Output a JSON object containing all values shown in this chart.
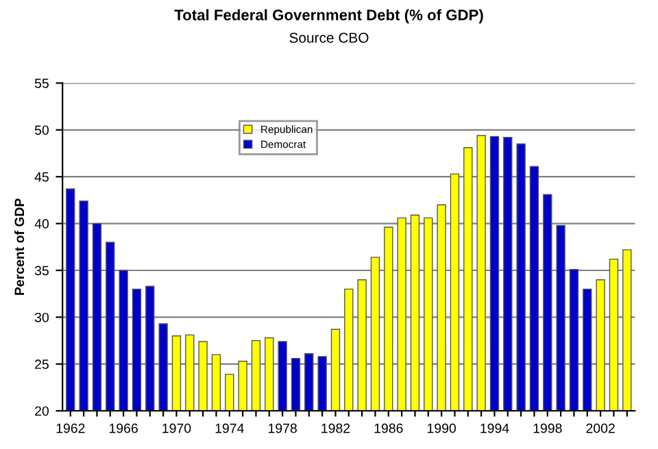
{
  "chart_data": {
    "type": "bar",
    "title": "Total Federal Government Debt (% of GDP)",
    "subtitle": "Source CBO",
    "ylabel": "Percent of GDP",
    "categories": [
      "1962",
      null,
      null,
      null,
      "1966",
      null,
      null,
      null,
      "1970",
      null,
      null,
      null,
      "1974",
      null,
      null,
      null,
      "1978",
      null,
      null,
      null,
      "1982",
      null,
      null,
      null,
      "1986",
      null,
      null,
      null,
      "1990",
      null,
      null,
      null,
      "1994",
      null,
      null,
      null,
      "1998",
      null,
      null,
      null,
      "2002",
      null,
      null
    ],
    "series": [
      {
        "name": "Republican",
        "color": "#ffff00",
        "values": [
          null,
          null,
          null,
          null,
          null,
          null,
          null,
          null,
          28.0,
          28.1,
          27.4,
          26.0,
          23.9,
          25.3,
          27.5,
          27.8,
          null,
          null,
          null,
          null,
          28.7,
          33.0,
          34.0,
          36.4,
          39.6,
          40.6,
          40.9,
          40.6,
          42.0,
          45.3,
          48.1,
          49.4,
          null,
          null,
          null,
          null,
          null,
          null,
          null,
          null,
          34.0,
          36.2,
          37.2
        ]
      },
      {
        "name": "Democrat",
        "color": "#0000cc",
        "values": [
          43.7,
          42.4,
          40.0,
          38.0,
          35.0,
          33.0,
          33.3,
          29.3,
          null,
          null,
          null,
          null,
          null,
          null,
          null,
          null,
          27.4,
          25.6,
          26.1,
          25.8,
          null,
          null,
          null,
          null,
          null,
          null,
          null,
          null,
          null,
          null,
          null,
          null,
          49.3,
          49.2,
          48.5,
          46.1,
          43.1,
          39.8,
          35.1,
          33.0,
          null,
          null,
          null
        ]
      }
    ],
    "ylim": [
      20,
      55
    ],
    "yticks": [
      20,
      25,
      30,
      35,
      40,
      45,
      50,
      55
    ],
    "grid": "y",
    "legend": "top left"
  }
}
